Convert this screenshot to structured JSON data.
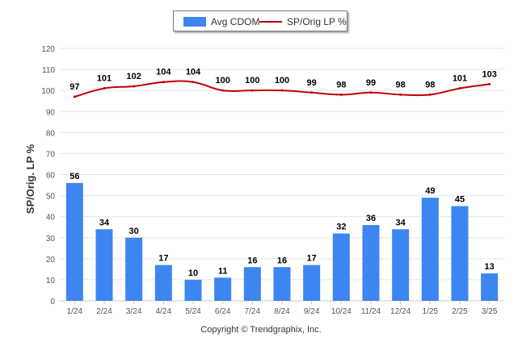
{
  "legend": {
    "bar_label": "Avg CDOM",
    "line_label": "SP/Orig LP %"
  },
  "footer": {
    "copyright": "Copyright © Trendgraphix, Inc."
  },
  "colors": {
    "bar": "#3d85f0",
    "line": "#c00000",
    "grid": "#e6e6e6",
    "axis_text": "#555555",
    "label_text": "#000000"
  },
  "chart_data": {
    "type": "bar",
    "title": "",
    "xlabel": "",
    "ylabel": "SP/Orig. LP %",
    "ylim": [
      0,
      120
    ],
    "yticks": [
      0,
      10,
      20,
      30,
      40,
      50,
      60,
      70,
      80,
      90,
      100,
      110,
      120
    ],
    "grid": true,
    "legend_position": "top-center",
    "categories": [
      "1/24",
      "2/24",
      "3/24",
      "4/24",
      "5/24",
      "6/24",
      "7/24",
      "8/24",
      "9/24",
      "10/24",
      "11/24",
      "12/24",
      "1/25",
      "2/25",
      "3/25"
    ],
    "series": [
      {
        "name": "Avg CDOM",
        "type": "bar",
        "values": [
          56,
          34,
          30,
          17,
          10,
          11,
          16,
          16,
          17,
          32,
          36,
          34,
          49,
          45,
          13
        ]
      },
      {
        "name": "SP/Orig LP %",
        "type": "line",
        "values": [
          97,
          101,
          102,
          104,
          104,
          100,
          100,
          100,
          99,
          98,
          99,
          98,
          98,
          101,
          103
        ]
      }
    ]
  }
}
